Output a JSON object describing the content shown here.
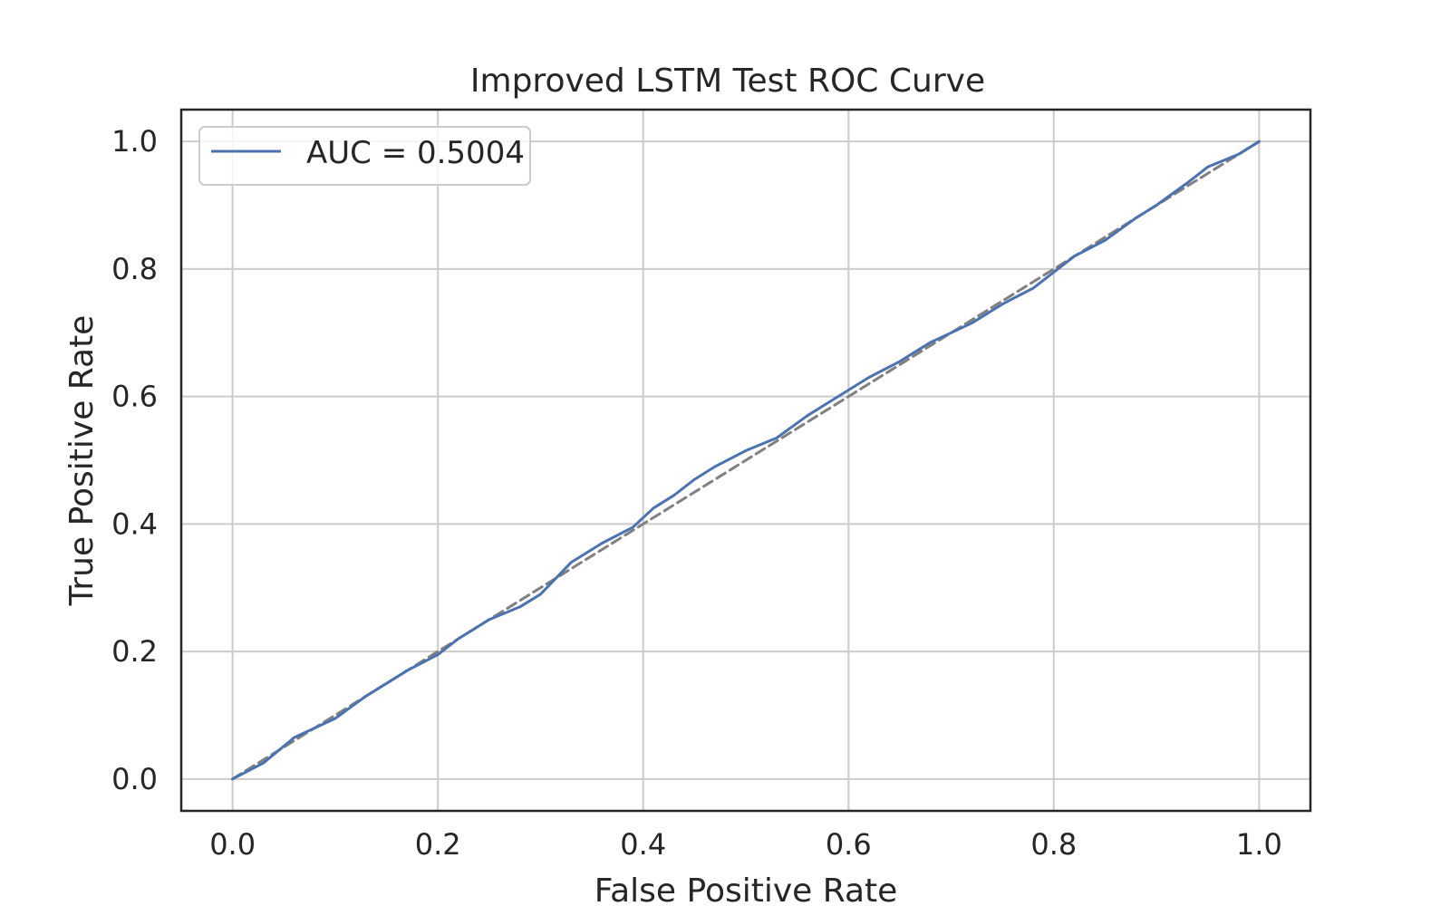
{
  "chart_data": {
    "type": "line",
    "title": "Improved LSTM Test ROC Curve",
    "xlabel": "False Positive Rate",
    "ylabel": "True Positive Rate",
    "xlim": [
      -0.05,
      1.05
    ],
    "ylim": [
      -0.05,
      1.05
    ],
    "xticks": [
      "0.0",
      "0.2",
      "0.4",
      "0.6",
      "0.8",
      "1.0"
    ],
    "yticks": [
      "0.0",
      "0.2",
      "0.4",
      "0.6",
      "0.8",
      "1.0"
    ],
    "grid": true,
    "legend_position": "top-left",
    "series": [
      {
        "name": "AUC = 0.5004",
        "color": "#4c72b0",
        "style": "solid",
        "x": [
          0.0,
          0.03,
          0.06,
          0.08,
          0.1,
          0.13,
          0.15,
          0.17,
          0.2,
          0.22,
          0.25,
          0.28,
          0.3,
          0.33,
          0.36,
          0.39,
          0.41,
          0.43,
          0.45,
          0.47,
          0.5,
          0.53,
          0.56,
          0.59,
          0.62,
          0.65,
          0.68,
          0.7,
          0.72,
          0.75,
          0.78,
          0.8,
          0.82,
          0.85,
          0.88,
          0.9,
          0.93,
          0.95,
          0.98,
          1.0
        ],
        "y": [
          0.0,
          0.025,
          0.065,
          0.08,
          0.095,
          0.13,
          0.15,
          0.17,
          0.195,
          0.22,
          0.25,
          0.27,
          0.29,
          0.34,
          0.37,
          0.395,
          0.425,
          0.445,
          0.47,
          0.49,
          0.515,
          0.535,
          0.57,
          0.6,
          0.63,
          0.655,
          0.685,
          0.7,
          0.715,
          0.745,
          0.77,
          0.795,
          0.82,
          0.845,
          0.88,
          0.9,
          0.935,
          0.96,
          0.98,
          1.0
        ]
      },
      {
        "name": "",
        "color": "#808080",
        "style": "dashed",
        "x": [
          0.0,
          1.0
        ],
        "y": [
          0.0,
          1.0
        ]
      }
    ]
  }
}
